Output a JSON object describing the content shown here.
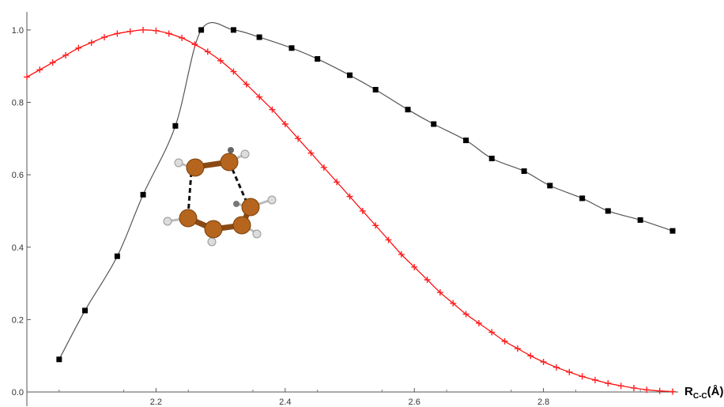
{
  "chart_data": {
    "type": "line",
    "title": "",
    "xlabel": "R",
    "xlabel_sub": "C-C",
    "xlabel_unit": "(Å)",
    "ylabel": "",
    "xlim": [
      2.0,
      3.0
    ],
    "ylim": [
      0.0,
      1.05
    ],
    "x_ticks": [
      2.2,
      2.4,
      2.6,
      2.8
    ],
    "x_tick_labels": [
      "2.2",
      "2.4",
      "2.6",
      "2.8"
    ],
    "y_ticks": [
      0.0,
      0.2,
      0.4,
      0.6,
      0.8,
      1.0
    ],
    "y_tick_labels": [
      "0.0",
      "0.2",
      "0.4",
      "0.6",
      "0.8",
      "1.0"
    ],
    "grid": false,
    "legend": "none",
    "series": [
      {
        "marker": "square",
        "color": "#000000",
        "line_color": "#555555",
        "x": [
          2.05,
          2.09,
          2.14,
          2.18,
          2.23,
          2.27,
          2.32,
          2.36,
          2.41,
          2.45,
          2.5,
          2.54,
          2.59,
          2.63,
          2.68,
          2.72,
          2.77,
          2.81,
          2.86,
          2.9,
          2.95,
          3.0
        ],
        "y": [
          0.09,
          0.225,
          0.375,
          0.545,
          0.735,
          1.0,
          1.0,
          0.98,
          0.95,
          0.92,
          0.875,
          0.835,
          0.78,
          0.74,
          0.695,
          0.645,
          0.61,
          0.57,
          0.535,
          0.5,
          0.475,
          0.445
        ]
      },
      {
        "marker": "plus",
        "color": "#ff2222",
        "line_color": "#ff0000",
        "x": [
          2.0,
          2.02,
          2.04,
          2.06,
          2.08,
          2.1,
          2.12,
          2.14,
          2.16,
          2.18,
          2.2,
          2.22,
          2.24,
          2.26,
          2.28,
          2.3,
          2.32,
          2.34,
          2.36,
          2.38,
          2.4,
          2.42,
          2.44,
          2.46,
          2.48,
          2.5,
          2.52,
          2.54,
          2.56,
          2.58,
          2.6,
          2.62,
          2.64,
          2.66,
          2.68,
          2.7,
          2.72,
          2.74,
          2.76,
          2.78,
          2.8,
          2.82,
          2.84,
          2.86,
          2.88,
          2.9,
          2.92,
          2.94,
          2.96,
          2.98,
          3.0
        ],
        "y": [
          0.87,
          0.89,
          0.91,
          0.93,
          0.95,
          0.965,
          0.98,
          0.99,
          0.996,
          1.0,
          0.998,
          0.99,
          0.978,
          0.96,
          0.94,
          0.915,
          0.885,
          0.85,
          0.815,
          0.78,
          0.74,
          0.7,
          0.66,
          0.62,
          0.58,
          0.54,
          0.5,
          0.46,
          0.42,
          0.38,
          0.345,
          0.31,
          0.275,
          0.245,
          0.215,
          0.19,
          0.165,
          0.14,
          0.12,
          0.1,
          0.083,
          0.068,
          0.055,
          0.043,
          0.033,
          0.024,
          0.017,
          0.011,
          0.006,
          0.003,
          0.001
        ]
      }
    ]
  },
  "inset": {
    "molecule_icon": "carbon-ring-molecule-icon",
    "carbon_color": "#b5651d",
    "hydrogen_color": "#d9d9d9"
  }
}
